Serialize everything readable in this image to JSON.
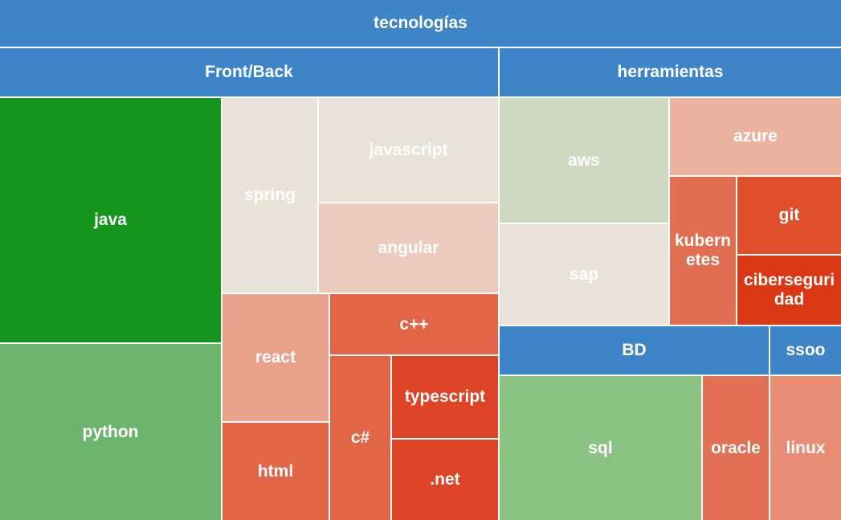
{
  "chart_data": {
    "type": "treemap",
    "title": "tecnologías",
    "color_scale_note": "green = high, beige = mid, red = low",
    "groups": [
      {
        "name": "Front/Back",
        "color": "#3e85c7",
        "items": [
          {
            "name": "java",
            "color": "#14961e"
          },
          {
            "name": "python",
            "color": "#6db56d"
          },
          {
            "name": "spring",
            "color": "#e8e2d9"
          },
          {
            "name": "javascript",
            "color": "#e8e2d9"
          },
          {
            "name": "angular",
            "color": "#eacbbd"
          },
          {
            "name": "react",
            "color": "#e8a18b"
          },
          {
            "name": "html",
            "color": "#e26547"
          },
          {
            "name": "c++",
            "color": "#e26547"
          },
          {
            "name": "c#",
            "color": "#e26547"
          },
          {
            "name": "typescript",
            "color": "#dd4427"
          },
          {
            "name": ".net",
            "color": "#dd4427"
          }
        ]
      },
      {
        "name": "herramientas",
        "color": "#3e85c7",
        "items": [
          {
            "name": "aws",
            "color": "#cddabf"
          },
          {
            "name": "sap",
            "color": "#e8e2d9"
          },
          {
            "name": "azure",
            "color": "#e9b3a0"
          },
          {
            "name": "kubernetes",
            "label": "kubern\netes",
            "color": "#e26e52"
          },
          {
            "name": "git",
            "color": "#df4f2c"
          },
          {
            "name": "ciberseguridad",
            "label": "ciberseguri\ndad",
            "color": "#da3715"
          }
        ]
      },
      {
        "name": "BD",
        "color": "#3e85c7",
        "items": [
          {
            "name": "sql",
            "color": "#89c283"
          },
          {
            "name": "oracle",
            "color": "#e27054"
          }
        ]
      },
      {
        "name": "ssoo",
        "color": "#3e85c7",
        "items": [
          {
            "name": "linux",
            "color": "#e88c73"
          }
        ]
      }
    ]
  }
}
